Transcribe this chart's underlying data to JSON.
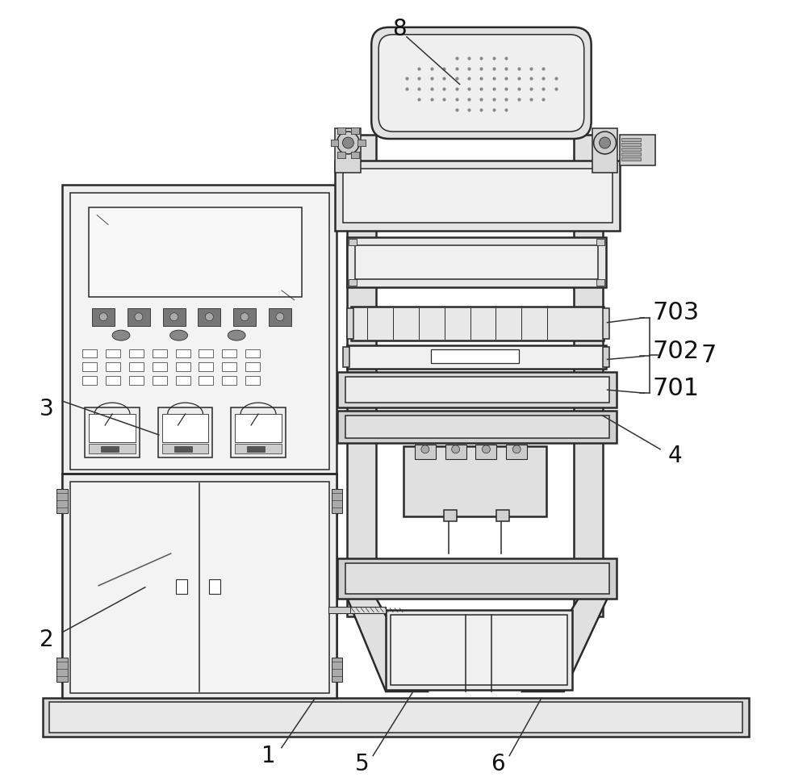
{
  "bg": "#ffffff",
  "lc": "#2a2a2a",
  "fc_light": "#f0f0f0",
  "fc_mid": "#dedede",
  "fc_dark": "#c0c0c0",
  "fc_panel": "#eeeeee",
  "figsize": [
    10.0,
    9.63
  ],
  "dpi": 100
}
